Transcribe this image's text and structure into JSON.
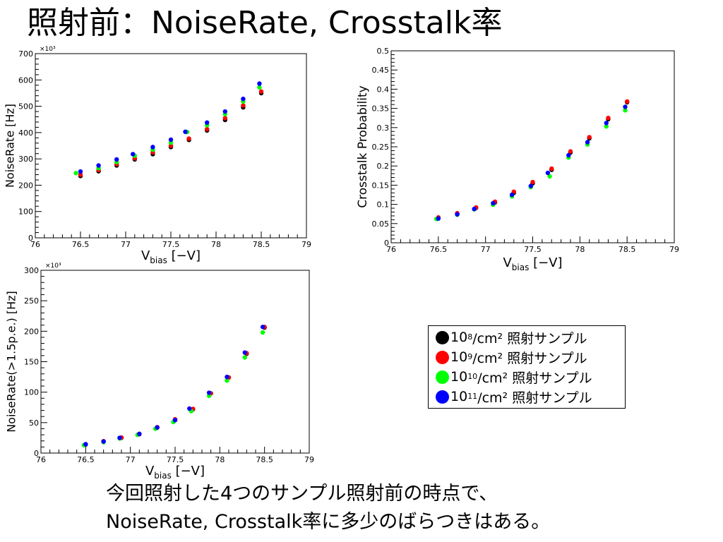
{
  "title": "照射前：NoiseRate, Crosstalk率",
  "caption": {
    "line1": "今回照射した4つのサンプル照射前の時点で、",
    "line2": "NoiseRate, Crosstalk率に多少のばらつきはある。"
  },
  "legend": {
    "suffix": "/cm² 照射サンプル",
    "items": [
      {
        "base": "10",
        "exp": "8",
        "color": "#000000"
      },
      {
        "base": "10",
        "exp": "9",
        "color": "#ff0000"
      },
      {
        "base": "10",
        "exp": "10",
        "color": "#00ff00"
      },
      {
        "base": "10",
        "exp": "11",
        "color": "#0000ff"
      }
    ]
  },
  "chart_data": [
    {
      "type": "scatter",
      "title": "",
      "xlabel": "V_bias [−V]",
      "ylabel": "NoiseRate [Hz]",
      "multiplier": "×10³",
      "xlim": [
        76,
        79
      ],
      "ylim": [
        0,
        700
      ],
      "xticks": [
        "76",
        "76.5",
        "77",
        "77.5",
        "78",
        "78.5",
        "79"
      ],
      "yticks": [
        "0",
        "100",
        "200",
        "300",
        "400",
        "500",
        "600",
        "700"
      ],
      "series": [
        {
          "color": "#000000",
          "x": [
            76.5,
            76.7,
            76.9,
            77.1,
            77.3,
            77.5,
            77.7,
            77.9,
            78.1,
            78.3,
            78.5
          ],
          "y": [
            235,
            253,
            275,
            298,
            318,
            345,
            372,
            408,
            448,
            496,
            550
          ]
        },
        {
          "color": "#ff0000",
          "x": [
            76.5,
            76.7,
            76.9,
            77.1,
            77.3,
            77.5,
            77.7,
            77.9,
            78.1,
            78.3,
            78.5
          ],
          "y": [
            240,
            258,
            280,
            302,
            325,
            350,
            377,
            413,
            455,
            503,
            556
          ]
        },
        {
          "color": "#00ff00",
          "x": [
            76.45,
            76.7,
            76.9,
            77.1,
            77.3,
            77.5,
            77.68,
            77.9,
            78.1,
            78.3,
            78.48
          ],
          "y": [
            246,
            265,
            288,
            312,
            335,
            362,
            402,
            428,
            470,
            518,
            572
          ]
        },
        {
          "color": "#0000ff",
          "x": [
            76.5,
            76.7,
            76.9,
            77.08,
            77.3,
            77.5,
            77.66,
            77.9,
            78.1,
            78.3,
            78.48
          ],
          "y": [
            252,
            275,
            298,
            318,
            345,
            373,
            403,
            438,
            480,
            528,
            586
          ]
        }
      ]
    },
    {
      "type": "scatter",
      "title": "",
      "xlabel": "V_bias [−V]",
      "ylabel": "Crosstalk Probability",
      "xlim": [
        76,
        79
      ],
      "ylim": [
        0,
        0.5
      ],
      "xticks": [
        "76",
        "76.5",
        "77",
        "77.5",
        "78",
        "78.5",
        "79"
      ],
      "yticks": [
        "0",
        "0.05",
        "0.1",
        "0.15",
        "0.2",
        "0.25",
        "0.3",
        "0.35",
        "0.4",
        "0.45",
        "0.5"
      ],
      "series": [
        {
          "color": "#000000",
          "x": [
            76.5,
            76.7,
            76.9,
            77.1,
            77.3,
            77.5,
            77.7,
            77.9,
            78.1,
            78.3,
            78.5
          ],
          "y": [
            0.065,
            0.076,
            0.091,
            0.105,
            0.13,
            0.155,
            0.19,
            0.235,
            0.272,
            0.322,
            0.366
          ]
        },
        {
          "color": "#ff0000",
          "x": [
            76.5,
            76.7,
            76.9,
            77.1,
            77.3,
            77.5,
            77.7,
            77.9,
            78.1,
            78.3,
            78.5
          ],
          "y": [
            0.066,
            0.077,
            0.092,
            0.107,
            0.133,
            0.158,
            0.193,
            0.238,
            0.275,
            0.325,
            0.368
          ]
        },
        {
          "color": "#00ff00",
          "x": [
            76.48,
            76.7,
            76.88,
            77.08,
            77.28,
            77.48,
            77.68,
            77.88,
            78.08,
            78.28,
            78.48
          ],
          "y": [
            0.062,
            0.073,
            0.087,
            0.099,
            0.121,
            0.145,
            0.173,
            0.222,
            0.256,
            0.303,
            0.345
          ]
        },
        {
          "color": "#0000ff",
          "x": [
            76.5,
            76.7,
            76.88,
            77.08,
            77.28,
            77.48,
            77.66,
            77.88,
            78.08,
            78.28,
            78.48
          ],
          "y": [
            0.063,
            0.074,
            0.088,
            0.103,
            0.125,
            0.148,
            0.182,
            0.228,
            0.262,
            0.312,
            0.354
          ]
        }
      ]
    },
    {
      "type": "scatter",
      "title": "",
      "xlabel": "V_bias [−V]",
      "ylabel": "NoiseRate(>1.5p.e.) [Hz]",
      "multiplier": "×10³",
      "xlim": [
        76,
        79
      ],
      "ylim": [
        0,
        300
      ],
      "xticks": [
        "76",
        "76.5",
        "77",
        "77.5",
        "78",
        "78.5",
        "79"
      ],
      "yticks": [
        "0",
        "50",
        "100",
        "150",
        "200",
        "250",
        "300"
      ],
      "series": [
        {
          "color": "#000000",
          "x": [
            76.5,
            76.7,
            76.9,
            77.1,
            77.3,
            77.5,
            77.7,
            77.9,
            78.1,
            78.3,
            78.5
          ],
          "y": [
            14,
            19,
            25,
            31,
            42,
            55,
            72,
            98,
            124,
            163,
            206
          ]
        },
        {
          "color": "#ff0000",
          "x": [
            76.5,
            76.7,
            76.9,
            77.1,
            77.3,
            77.5,
            77.7,
            77.9,
            78.1,
            78.3,
            78.5
          ],
          "y": [
            14.5,
            19.5,
            25.5,
            31.5,
            42.5,
            55.5,
            72.5,
            98,
            124,
            164,
            207
          ]
        },
        {
          "color": "#00ff00",
          "x": [
            76.48,
            76.7,
            76.88,
            77.08,
            77.28,
            77.48,
            77.68,
            77.88,
            78.08,
            78.28,
            78.48
          ],
          "y": [
            13,
            18,
            24,
            30,
            40,
            51,
            69,
            94,
            119,
            157,
            198
          ]
        },
        {
          "color": "#0000ff",
          "x": [
            76.5,
            76.7,
            76.88,
            77.1,
            77.3,
            77.5,
            77.66,
            77.88,
            78.08,
            78.28,
            78.48
          ],
          "y": [
            14.5,
            19,
            25,
            31.5,
            42,
            54,
            73,
            99,
            125,
            165,
            207
          ]
        }
      ]
    }
  ]
}
